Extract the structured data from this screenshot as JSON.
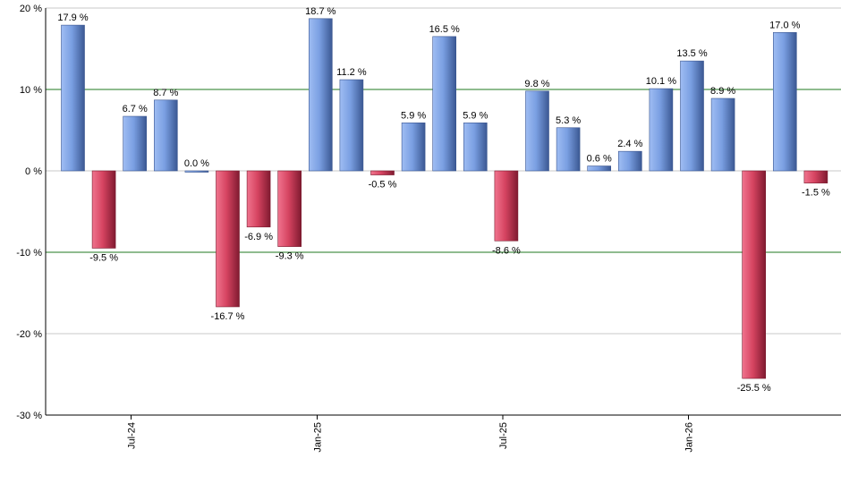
{
  "chart_data": {
    "type": "bar",
    "title": "",
    "xlabel": "",
    "ylabel": "",
    "ylim": [
      -30,
      20
    ],
    "yticks": [
      20,
      10,
      0,
      -10,
      -20,
      -30
    ],
    "ytick_labels": [
      "20 %",
      "10 %",
      "0 %",
      "-10 %",
      "-20 %",
      "-30 %"
    ],
    "grid": true,
    "value_suffix": " %",
    "values": [
      17.9,
      -9.5,
      6.7,
      8.7,
      0.0,
      -16.7,
      -6.9,
      -9.3,
      18.7,
      11.2,
      -0.5,
      5.9,
      16.5,
      5.9,
      -8.6,
      9.8,
      5.3,
      0.6,
      2.4,
      10.1,
      13.5,
      8.9,
      -25.5,
      17.0,
      -1.5
    ],
    "data_labels": [
      "17.9 %",
      "-9.5 %",
      "6.7 %",
      "8.7 %",
      "0.0 %",
      "-16.7 %",
      "-6.9 %",
      "-9.3 %",
      "18.7 %",
      "11.2 %",
      "-0.5 %",
      "5.9 %",
      "16.5 %",
      "5.9 %",
      "-8.6 %",
      "9.8 %",
      "5.3 %",
      "0.6 %",
      "2.4 %",
      "10.1 %",
      "13.5 %",
      "8.9 %",
      "-25.5 %",
      "17.0 %",
      "-1.5 %"
    ],
    "x_tick_labels": [
      {
        "label": "Jul-24",
        "index": 2
      },
      {
        "label": "Jan-25",
        "index": 8
      },
      {
        "label": "Jul-25",
        "index": 14
      },
      {
        "label": "Jan-26",
        "index": 20
      }
    ],
    "colors": {
      "positive": "#7aa0e6",
      "positive_dark": "#3c5a94",
      "negative": "#e0506e",
      "negative_dark": "#8a1e35",
      "green_grid": "#1f7a1f",
      "grid": "#c8c8c8",
      "axis": "#000000"
    }
  }
}
